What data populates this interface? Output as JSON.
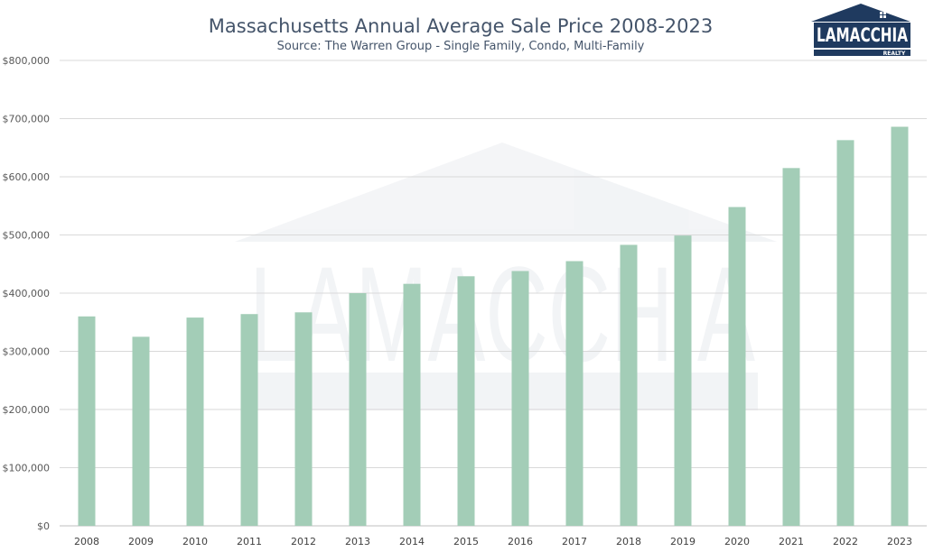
{
  "logo": {
    "name": "LAMACCHIA",
    "tagline": "REALTY"
  },
  "colors": {
    "bar": "#a3cdb7",
    "title": "#44546a",
    "logo_navy": "#1f3a5f"
  },
  "chart_data": {
    "type": "bar",
    "title": "Massachusetts Annual Average Sale Price 2008-2023",
    "subtitle": "Source: The Warren Group - Single Family, Condo, Multi-Family",
    "xlabel": "",
    "ylabel": "",
    "ylim": [
      0,
      800000
    ],
    "yticks": [
      0,
      100000,
      200000,
      300000,
      400000,
      500000,
      600000,
      700000,
      800000
    ],
    "ytick_labels": [
      "$0",
      "$100,000",
      "$200,000",
      "$300,000",
      "$400,000",
      "$500,000",
      "$600,000",
      "$700,000",
      "$800,000"
    ],
    "grid": true,
    "legend": "none",
    "categories": [
      "2008",
      "2009",
      "2010",
      "2011",
      "2012",
      "2013",
      "2014",
      "2015",
      "2016",
      "2017",
      "2018",
      "2019",
      "2020",
      "2021",
      "2022",
      "2023"
    ],
    "values": [
      360000,
      325000,
      358000,
      364000,
      367000,
      400000,
      416000,
      429000,
      438000,
      455000,
      483000,
      499000,
      548000,
      615000,
      663000,
      686000
    ]
  }
}
